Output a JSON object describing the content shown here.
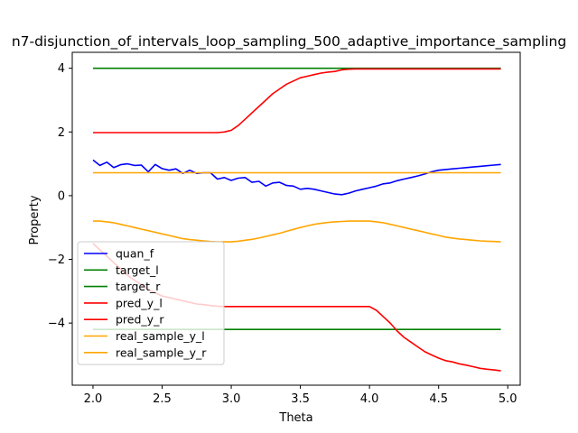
{
  "chart_data": {
    "type": "line",
    "title": "n7-disjunction_of_intervals_loop_sampling_500_adaptive_importance_sampling",
    "xlabel": "Theta",
    "ylabel": "Property",
    "xlim": [
      1.85,
      5.09
    ],
    "ylim": [
      -5.95,
      4.5
    ],
    "xticks": [
      2.0,
      2.5,
      3.0,
      3.5,
      4.0,
      4.5,
      5.0
    ],
    "xtick_labels": [
      "2.0",
      "2.5",
      "3.0",
      "3.5",
      "4.0",
      "4.5",
      "5.0"
    ],
    "yticks": [
      -4,
      -2,
      0,
      2,
      4
    ],
    "ytick_labels": [
      "−4",
      "−2",
      "0",
      "2",
      "4"
    ],
    "grid": false,
    "legend_position": "lower-left",
    "x": [
      2.0,
      2.05,
      2.1,
      2.15,
      2.2,
      2.25,
      2.3,
      2.35,
      2.4,
      2.45,
      2.5,
      2.55,
      2.6,
      2.65,
      2.7,
      2.75,
      2.8,
      2.85,
      2.9,
      2.95,
      3.0,
      3.05,
      3.1,
      3.15,
      3.2,
      3.25,
      3.3,
      3.35,
      3.4,
      3.45,
      3.5,
      3.55,
      3.6,
      3.65,
      3.7,
      3.75,
      3.8,
      3.85,
      3.9,
      3.95,
      4.0,
      4.05,
      4.1,
      4.15,
      4.2,
      4.25,
      4.3,
      4.35,
      4.4,
      4.45,
      4.5,
      4.55,
      4.6,
      4.65,
      4.7,
      4.75,
      4.8,
      4.85,
      4.9,
      4.95
    ],
    "series": [
      {
        "name": "quan_f",
        "color": "#0000ff",
        "values": [
          1.12,
          0.95,
          1.05,
          0.88,
          0.97,
          1.0,
          0.95,
          0.96,
          0.75,
          0.98,
          0.85,
          0.8,
          0.84,
          0.7,
          0.8,
          0.7,
          0.72,
          0.72,
          0.52,
          0.57,
          0.48,
          0.55,
          0.57,
          0.42,
          0.45,
          0.3,
          0.4,
          0.42,
          0.32,
          0.3,
          0.2,
          0.23,
          0.2,
          0.15,
          0.1,
          0.05,
          0.03,
          0.08,
          0.15,
          0.2,
          0.25,
          0.3,
          0.37,
          0.4,
          0.47,
          0.52,
          0.57,
          0.62,
          0.68,
          0.75,
          0.8,
          0.82,
          0.84,
          0.86,
          0.88,
          0.9,
          0.92,
          0.94,
          0.96,
          0.98
        ]
      },
      {
        "name": "target_l",
        "color": "#008000",
        "values": [
          4.0,
          4.0,
          4.0,
          4.0,
          4.0,
          4.0,
          4.0,
          4.0,
          4.0,
          4.0,
          4.0,
          4.0,
          4.0,
          4.0,
          4.0,
          4.0,
          4.0,
          4.0,
          4.0,
          4.0,
          4.0,
          4.0,
          4.0,
          4.0,
          4.0,
          4.0,
          4.0,
          4.0,
          4.0,
          4.0,
          4.0,
          4.0,
          4.0,
          4.0,
          4.0,
          4.0,
          4.0,
          4.0,
          4.0,
          4.0,
          4.0,
          4.0,
          4.0,
          4.0,
          4.0,
          4.0,
          4.0,
          4.0,
          4.0,
          4.0,
          4.0,
          4.0,
          4.0,
          4.0,
          4.0,
          4.0,
          4.0,
          4.0,
          4.0,
          4.0
        ]
      },
      {
        "name": "target_r",
        "color": "#008000",
        "values": [
          -4.2,
          -4.2,
          -4.2,
          -4.2,
          -4.2,
          -4.2,
          -4.2,
          -4.2,
          -4.2,
          -4.2,
          -4.2,
          -4.2,
          -4.2,
          -4.2,
          -4.2,
          -4.2,
          -4.2,
          -4.2,
          -4.2,
          -4.2,
          -4.2,
          -4.2,
          -4.2,
          -4.2,
          -4.2,
          -4.2,
          -4.2,
          -4.2,
          -4.2,
          -4.2,
          -4.2,
          -4.2,
          -4.2,
          -4.2,
          -4.2,
          -4.2,
          -4.2,
          -4.2,
          -4.2,
          -4.2,
          -4.2,
          -4.2,
          -4.2,
          -4.2,
          -4.2,
          -4.2,
          -4.2,
          -4.2,
          -4.2,
          -4.2,
          -4.2,
          -4.2,
          -4.2,
          -4.2,
          -4.2,
          -4.2,
          -4.2,
          -4.2,
          -4.2,
          -4.2
        ]
      },
      {
        "name": "pred_y_l",
        "color": "#ff0000",
        "values": [
          1.98,
          1.98,
          1.98,
          1.98,
          1.98,
          1.98,
          1.98,
          1.98,
          1.98,
          1.98,
          1.98,
          1.98,
          1.98,
          1.98,
          1.98,
          1.98,
          1.98,
          1.98,
          1.98,
          2.0,
          2.05,
          2.2,
          2.4,
          2.6,
          2.8,
          3.0,
          3.2,
          3.35,
          3.5,
          3.6,
          3.7,
          3.75,
          3.8,
          3.85,
          3.88,
          3.9,
          3.95,
          3.97,
          3.98,
          3.98,
          3.98,
          3.98,
          3.98,
          3.98,
          3.98,
          3.98,
          3.98,
          3.98,
          3.98,
          3.98,
          3.98,
          3.98,
          3.98,
          3.98,
          3.98,
          3.98,
          3.98,
          3.98,
          3.98,
          3.98
        ]
      },
      {
        "name": "pred_y_r",
        "color": "#ff0000",
        "values": [
          -1.5,
          -1.7,
          -1.9,
          -2.1,
          -2.3,
          -2.5,
          -2.65,
          -2.8,
          -2.95,
          -3.05,
          -3.15,
          -3.2,
          -3.25,
          -3.3,
          -3.35,
          -3.4,
          -3.42,
          -3.45,
          -3.47,
          -3.48,
          -3.48,
          -3.48,
          -3.48,
          -3.48,
          -3.48,
          -3.48,
          -3.48,
          -3.48,
          -3.48,
          -3.48,
          -3.48,
          -3.48,
          -3.48,
          -3.48,
          -3.48,
          -3.48,
          -3.48,
          -3.48,
          -3.48,
          -3.48,
          -3.48,
          -3.6,
          -3.8,
          -4.0,
          -4.25,
          -4.45,
          -4.6,
          -4.75,
          -4.9,
          -5.0,
          -5.1,
          -5.18,
          -5.22,
          -5.28,
          -5.32,
          -5.37,
          -5.42,
          -5.45,
          -5.47,
          -5.5
        ]
      },
      {
        "name": "real_sample_y_l",
        "color": "#ffa500",
        "values": [
          0.72,
          0.72,
          0.72,
          0.72,
          0.72,
          0.72,
          0.72,
          0.72,
          0.72,
          0.72,
          0.72,
          0.72,
          0.72,
          0.72,
          0.72,
          0.72,
          0.72,
          0.72,
          0.72,
          0.72,
          0.72,
          0.72,
          0.72,
          0.72,
          0.72,
          0.72,
          0.72,
          0.72,
          0.72,
          0.72,
          0.72,
          0.72,
          0.72,
          0.72,
          0.72,
          0.72,
          0.72,
          0.72,
          0.72,
          0.72,
          0.72,
          0.72,
          0.72,
          0.72,
          0.72,
          0.72,
          0.72,
          0.72,
          0.72,
          0.72,
          0.72,
          0.72,
          0.72,
          0.72,
          0.72,
          0.72,
          0.72,
          0.72,
          0.72,
          0.72
        ]
      },
      {
        "name": "real_sample_y_r",
        "color": "#ffa500",
        "values": [
          -0.8,
          -0.8,
          -0.82,
          -0.85,
          -0.9,
          -0.95,
          -1.0,
          -1.05,
          -1.1,
          -1.15,
          -1.2,
          -1.25,
          -1.3,
          -1.35,
          -1.38,
          -1.4,
          -1.42,
          -1.44,
          -1.45,
          -1.45,
          -1.45,
          -1.43,
          -1.4,
          -1.37,
          -1.33,
          -1.28,
          -1.23,
          -1.18,
          -1.12,
          -1.06,
          -1.0,
          -0.95,
          -0.9,
          -0.87,
          -0.84,
          -0.82,
          -0.81,
          -0.8,
          -0.8,
          -0.8,
          -0.8,
          -0.82,
          -0.85,
          -0.9,
          -0.95,
          -1.0,
          -1.05,
          -1.1,
          -1.15,
          -1.2,
          -1.25,
          -1.3,
          -1.33,
          -1.36,
          -1.38,
          -1.4,
          -1.42,
          -1.43,
          -1.44,
          -1.45
        ]
      }
    ]
  }
}
